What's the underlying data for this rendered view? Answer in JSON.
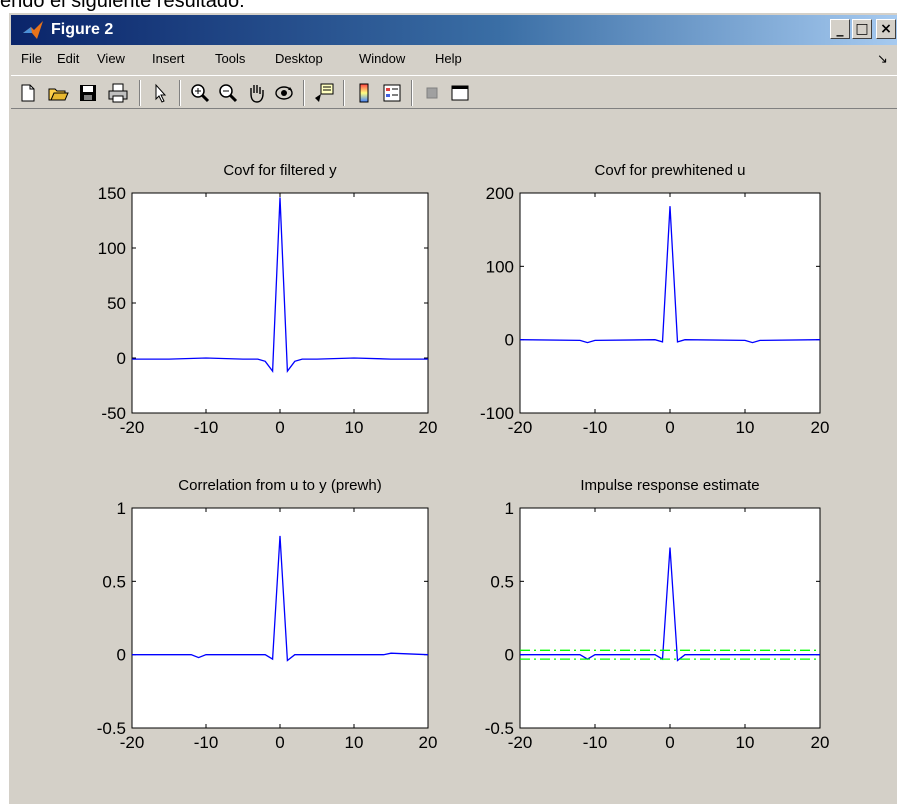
{
  "caption": "endo el siguiente resultado:",
  "window": {
    "title": "Figure 2",
    "controls": {
      "minimize": "_",
      "maximize": "□",
      "close": "×"
    }
  },
  "menubar": {
    "items": [
      {
        "label": "File"
      },
      {
        "label": "Edit"
      },
      {
        "label": "View"
      },
      {
        "label": "Insert"
      },
      {
        "label": "Tools"
      },
      {
        "label": "Desktop"
      },
      {
        "label": "Window"
      },
      {
        "label": "Help"
      }
    ],
    "overflow": "↘"
  },
  "toolbar": {
    "icons": [
      "new-figure-icon",
      "open-file-icon",
      "save-icon",
      "print-icon",
      "edit-plot-arrow-icon",
      "zoom-in-icon",
      "zoom-out-icon",
      "pan-hand-icon",
      "rotate-3d-icon",
      "data-cursor-icon",
      "colorbar-icon",
      "legend-icon",
      "hide-plot-tools-icon",
      "show-plot-tools-icon"
    ]
  },
  "colors": {
    "line": "#0000ff",
    "confidence": "#00ff00",
    "axes_bg": "#ffffff",
    "figure_bg": "#d4d0c8"
  },
  "chart_data": [
    {
      "type": "line",
      "title": "Covf for filtered y",
      "xlim": [
        -20,
        20
      ],
      "ylim": [
        -50,
        150
      ],
      "xticks": [
        -20,
        -10,
        0,
        10,
        20
      ],
      "yticks": [
        -50,
        0,
        50,
        100,
        150
      ],
      "series": [
        {
          "x": [
            -20,
            -15,
            -10,
            -5,
            -3,
            -2,
            -1,
            0,
            1,
            2,
            3,
            5,
            10,
            15,
            20
          ],
          "y": [
            -1,
            -1,
            0,
            -1,
            -1,
            -3,
            -12,
            146,
            -12,
            -3,
            -1,
            -1,
            0,
            -1,
            -1
          ]
        }
      ]
    },
    {
      "type": "line",
      "title": "Covf for prewhitened u",
      "xlim": [
        -20,
        20
      ],
      "ylim": [
        -100,
        200
      ],
      "xticks": [
        -20,
        -10,
        0,
        10,
        20
      ],
      "yticks": [
        -100,
        0,
        100,
        200
      ],
      "series": [
        {
          "x": [
            -20,
            -12,
            -11,
            -10,
            -2,
            -1,
            0,
            1,
            2,
            10,
            11,
            12,
            20
          ],
          "y": [
            0,
            -1,
            -4,
            -1,
            0,
            -3,
            182,
            -3,
            0,
            -1,
            -4,
            -1,
            0
          ]
        }
      ]
    },
    {
      "type": "line",
      "title": "Correlation from u to y (prewh)",
      "xlim": [
        -20,
        20
      ],
      "ylim": [
        -0.5,
        1
      ],
      "xticks": [
        -20,
        -10,
        0,
        10,
        20
      ],
      "yticks": [
        -0.5,
        0,
        0.5,
        1
      ],
      "series": [
        {
          "x": [
            -20,
            -12,
            -11,
            -10,
            -5,
            -2,
            -1,
            0,
            1,
            2,
            5,
            10,
            14,
            15,
            20
          ],
          "y": [
            0,
            0,
            -0.02,
            0,
            0,
            0,
            -0.03,
            0.81,
            -0.04,
            0,
            0,
            0,
            0,
            0.01,
            0
          ]
        }
      ]
    },
    {
      "type": "line",
      "title": "Impulse response estimate",
      "xlim": [
        -20,
        20
      ],
      "ylim": [
        -0.5,
        1
      ],
      "xticks": [
        -20,
        -10,
        0,
        10,
        20
      ],
      "yticks": [
        -0.5,
        0,
        0.5,
        1
      ],
      "series": [
        {
          "x": [
            -20,
            -12,
            -11,
            -10,
            -5,
            -2,
            -1,
            0,
            1,
            2,
            5,
            10,
            20
          ],
          "y": [
            0,
            0,
            -0.03,
            0,
            0,
            0,
            -0.03,
            0.73,
            -0.04,
            0,
            0,
            0,
            0
          ]
        },
        {
          "x": [
            -20,
            20
          ],
          "y": [
            0.03,
            0.03
          ],
          "style": "dashdot"
        },
        {
          "x": [
            -20,
            20
          ],
          "y": [
            -0.03,
            -0.03
          ],
          "style": "dashdot"
        }
      ]
    }
  ]
}
